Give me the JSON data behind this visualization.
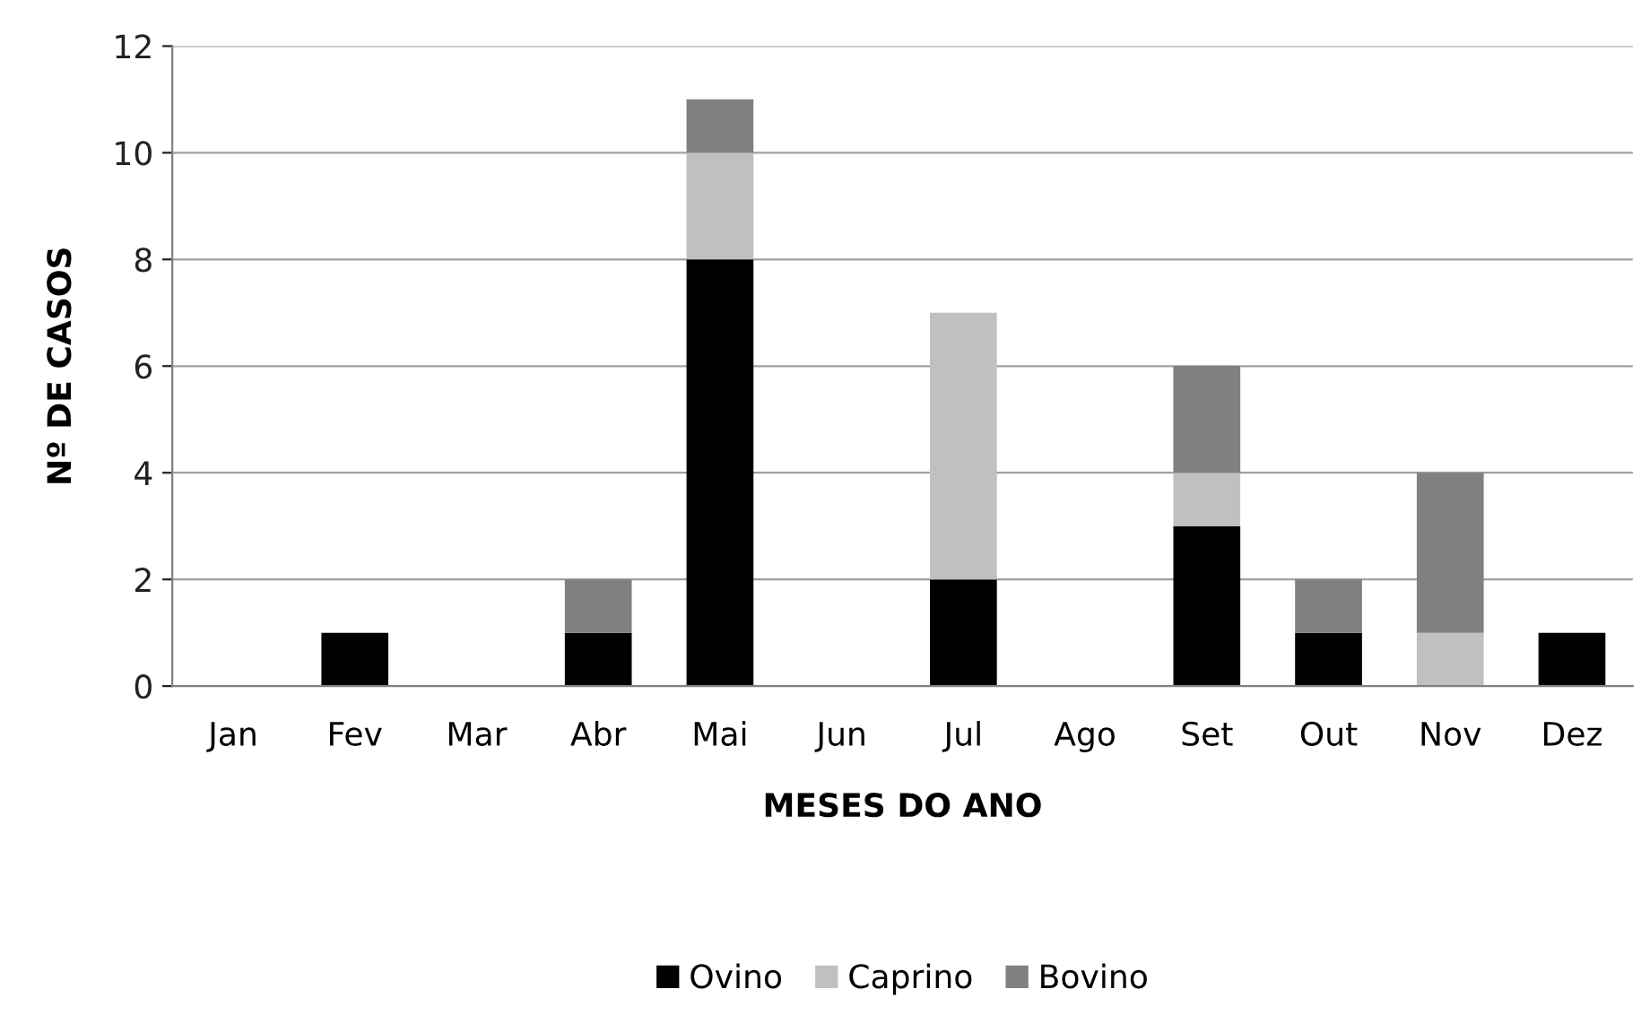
{
  "chart_data": {
    "type": "bar",
    "stacked": true,
    "xlabel": "MESES DO ANO",
    "ylabel": "Nº DE CASOS",
    "categories": [
      "Jan",
      "Fev",
      "Mar",
      "Abr",
      "Mai",
      "Jun",
      "Jul",
      "Ago",
      "Set",
      "Out",
      "Nov",
      "Dez"
    ],
    "series": [
      {
        "name": "Ovino",
        "color": "#000000",
        "values": [
          0,
          1,
          0,
          1,
          8,
          0,
          2,
          0,
          3,
          1,
          0,
          1
        ]
      },
      {
        "name": "Caprino",
        "color": "#c0c0c0",
        "values": [
          0,
          0,
          0,
          0,
          2,
          0,
          5,
          0,
          1,
          0,
          1,
          0
        ]
      },
      {
        "name": "Bovino",
        "color": "#808080",
        "values": [
          0,
          0,
          0,
          1,
          1,
          0,
          0,
          0,
          2,
          1,
          3,
          0
        ]
      }
    ],
    "ylim": [
      0,
      12
    ],
    "yticks": [
      0,
      2,
      4,
      6,
      8,
      10,
      12
    ],
    "grid": "y",
    "legend": "bottom"
  }
}
